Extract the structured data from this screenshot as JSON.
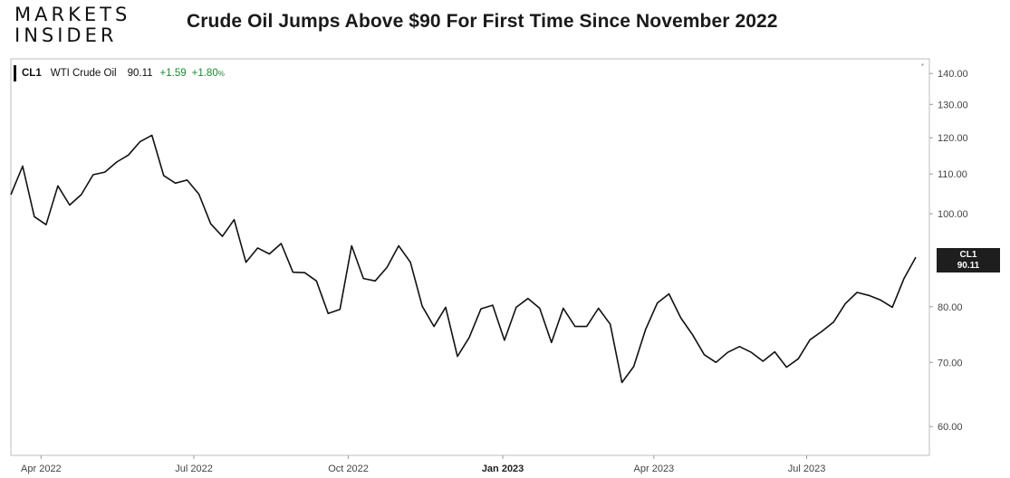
{
  "brand": {
    "line1": "MARKETS",
    "line2": "INSIDER"
  },
  "headline": "Crude Oil Jumps Above $90 For First Time Since November 2022",
  "legend": {
    "symbol": "CL1",
    "name": "WTI Crude Oil",
    "last": "90.11",
    "change": "+1.59",
    "change_pct": "+1.80",
    "pct_sign": "%"
  },
  "price_tag": {
    "symbol": "CL1",
    "value": "90.11"
  },
  "colors": {
    "line": "#111111",
    "positive": "#1a8a2e",
    "tag_bg": "#1e1e1e"
  },
  "chart_data": {
    "type": "line",
    "title": "Crude Oil Jumps Above $90 For First Time Since November 2022",
    "series": [
      {
        "name": "WTI Crude Oil",
        "x": [
          "2022-03-14",
          "2022-03-21",
          "2022-03-28",
          "2022-04-04",
          "2022-04-11",
          "2022-04-18",
          "2022-04-25",
          "2022-05-02",
          "2022-05-09",
          "2022-05-16",
          "2022-05-23",
          "2022-05-30",
          "2022-06-06",
          "2022-06-13",
          "2022-06-20",
          "2022-06-27",
          "2022-07-04",
          "2022-07-11",
          "2022-07-18",
          "2022-07-25",
          "2022-08-01",
          "2022-08-08",
          "2022-08-15",
          "2022-08-22",
          "2022-08-29",
          "2022-09-05",
          "2022-09-12",
          "2022-09-19",
          "2022-09-26",
          "2022-10-03",
          "2022-10-10",
          "2022-10-17",
          "2022-10-24",
          "2022-10-31",
          "2022-11-07",
          "2022-11-14",
          "2022-11-21",
          "2022-11-28",
          "2022-12-05",
          "2022-12-12",
          "2022-12-19",
          "2022-12-26",
          "2023-01-02",
          "2023-01-09",
          "2023-01-16",
          "2023-01-23",
          "2023-01-30",
          "2023-02-06",
          "2023-02-13",
          "2023-02-20",
          "2023-02-27",
          "2023-03-06",
          "2023-03-13",
          "2023-03-20",
          "2023-03-27",
          "2023-04-03",
          "2023-04-10",
          "2023-04-17",
          "2023-04-24",
          "2023-05-01",
          "2023-05-08",
          "2023-05-15",
          "2023-05-22",
          "2023-05-29",
          "2023-06-05",
          "2023-06-12",
          "2023-06-19",
          "2023-06-26",
          "2023-07-03",
          "2023-07-10",
          "2023-07-17",
          "2023-07-24",
          "2023-07-31",
          "2023-08-07",
          "2023-08-14",
          "2023-08-21",
          "2023-08-28",
          "2023-09-04"
        ],
        "values": [
          104.7,
          112.1,
          99.3,
          97.4,
          106.9,
          102.1,
          104.7,
          109.8,
          110.5,
          113.2,
          115.1,
          118.9,
          120.7,
          109.6,
          107.6,
          108.4,
          104.8,
          97.6,
          94.7,
          98.6,
          89.0,
          92.1,
          90.8,
          93.1,
          86.9,
          86.8,
          85.1,
          78.7,
          79.5,
          92.6,
          85.6,
          85.1,
          87.9,
          92.6,
          89.0,
          80.1,
          76.3,
          79.9,
          71.0,
          74.3,
          79.6,
          80.3,
          73.8,
          79.9,
          81.6,
          79.7,
          73.4,
          79.7,
          76.3,
          76.3,
          79.7,
          76.7,
          66.7,
          69.3,
          75.7,
          80.7,
          82.5,
          77.9,
          74.8,
          71.3,
          70.0,
          71.7,
          72.7,
          71.7,
          70.2,
          71.8,
          69.2,
          70.6,
          73.9,
          75.4,
          77.1,
          80.6,
          82.8,
          82.2,
          81.3,
          79.9,
          85.6,
          90.1
        ]
      }
    ],
    "x_ticks": [
      "Apr 2022",
      "Jul 2022",
      "Oct 2022",
      "Jan 2023",
      "Apr 2023",
      "Jul 2023"
    ],
    "y_ticks": [
      "140.00",
      "130.00",
      "120.00",
      "110.00",
      "100.00",
      "80.00",
      "70.00",
      "60.00"
    ],
    "ylim": [
      56,
      145
    ],
    "yscale": "log",
    "grid": false
  }
}
